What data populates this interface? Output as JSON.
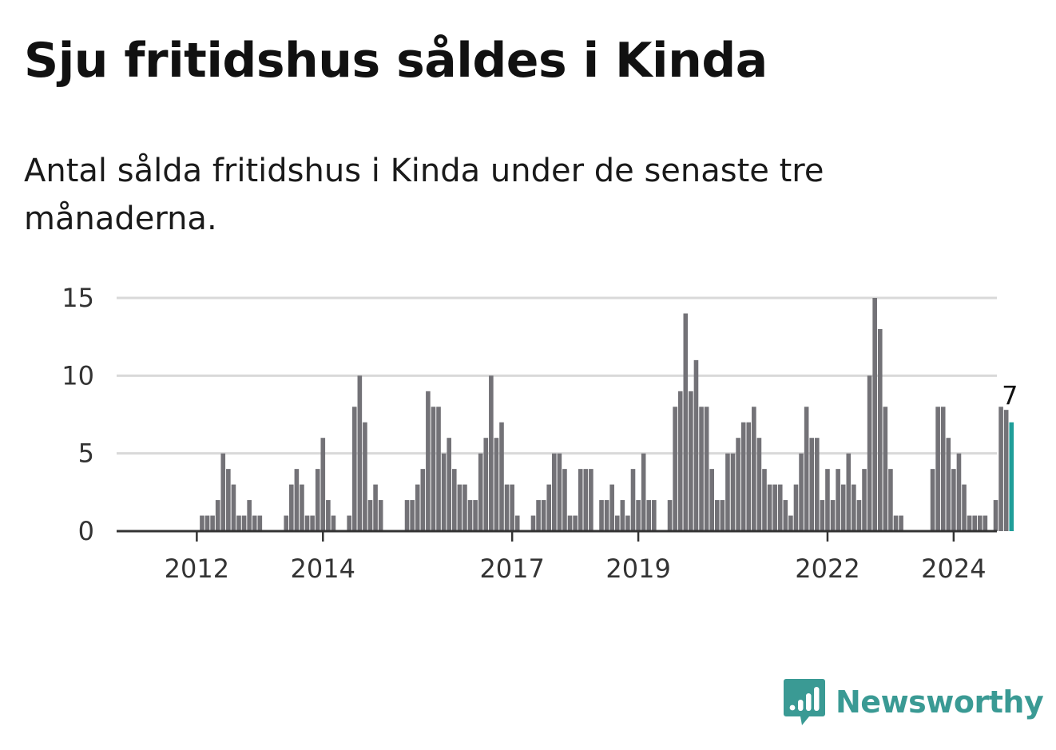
{
  "header": {
    "title": "Sju fritidshus såldes i Kinda",
    "subtitle": "Antal sålda fritidshus i Kinda under de senaste tre månaderna."
  },
  "brand": {
    "name": "Newsworthy",
    "icon": "newsworthy-logo-icon",
    "color": "#3a9a94"
  },
  "chart_data": {
    "type": "bar",
    "title": "",
    "xlabel": "",
    "ylabel": "",
    "x_start": "2011-06",
    "x_step": "month",
    "x_ticks": [
      {
        "label": "2012",
        "date": "2012-01"
      },
      {
        "label": "2014",
        "date": "2014-01"
      },
      {
        "label": "2017",
        "date": "2017-01"
      },
      {
        "label": "2019",
        "date": "2019-01"
      },
      {
        "label": "2022",
        "date": "2022-01"
      },
      {
        "label": "2024",
        "date": "2024-01"
      }
    ],
    "y_ticks": [
      0,
      5,
      10,
      15
    ],
    "ylim": [
      0,
      15
    ],
    "grid": true,
    "bar_color": "#737277",
    "highlight_color": "#1f9e99",
    "highlight_last": true,
    "last_value_label": "7",
    "series": [
      {
        "values": [
          0,
          0,
          0,
          0,
          0,
          0,
          0,
          0,
          1,
          1,
          1,
          2,
          5,
          4,
          3,
          1,
          1,
          2,
          1,
          1,
          0,
          0,
          0,
          0,
          1,
          3,
          4,
          3,
          1,
          1,
          4,
          6,
          2,
          1,
          0,
          0,
          1,
          8,
          10,
          7,
          2,
          3,
          2,
          0,
          0,
          0,
          0,
          2,
          2,
          3,
          4,
          9,
          8,
          8,
          5,
          6,
          4,
          3,
          3,
          2,
          2,
          5,
          6,
          10,
          6,
          7,
          3,
          3,
          1,
          0,
          0,
          1,
          2,
          2,
          3,
          5,
          5,
          4,
          1,
          1,
          4,
          4,
          4,
          0,
          2,
          2,
          3,
          1,
          2,
          1,
          4,
          2,
          5,
          2,
          2,
          0,
          0,
          2,
          8,
          9,
          14,
          9,
          11,
          8,
          8,
          4,
          2,
          2,
          5,
          5,
          6,
          7,
          7,
          8,
          6,
          4,
          3,
          3,
          3,
          2,
          1,
          3,
          5,
          8,
          6,
          6,
          2,
          4,
          2,
          4,
          3,
          5,
          3,
          2,
          4,
          10,
          15,
          13,
          8,
          4,
          1,
          1,
          0,
          0,
          0,
          0,
          0,
          4,
          8,
          8,
          6,
          4,
          5,
          3,
          1,
          1,
          1,
          1,
          0,
          2,
          8,
          7.8,
          7
        ]
      }
    ]
  }
}
